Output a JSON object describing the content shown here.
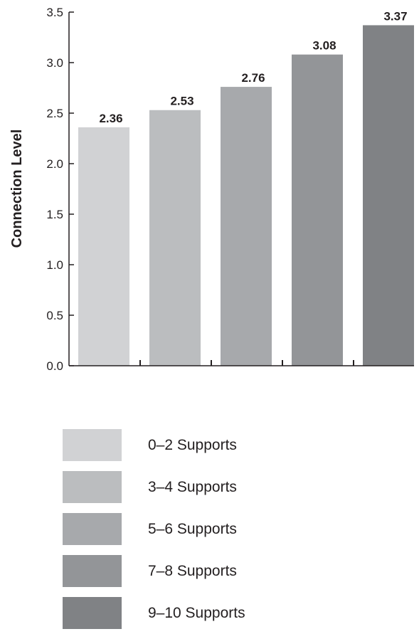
{
  "chart_data": {
    "type": "bar",
    "categories": [
      "0–2 Supports",
      "3–4 Supports",
      "5–6 Supports",
      "7–8 Supports",
      "9–10 Supports"
    ],
    "values": [
      2.36,
      2.53,
      2.76,
      3.08,
      3.37
    ],
    "value_labels": [
      "2.36",
      "2.53",
      "2.76",
      "3.08",
      "3.37"
    ],
    "colors": [
      "#d1d2d4",
      "#bbbdbf",
      "#a7a9ac",
      "#939598",
      "#808285"
    ],
    "title": "",
    "xlabel": "",
    "ylabel": "Connection Level",
    "ylim": [
      0,
      3.5
    ],
    "yticks": [
      "0.0",
      "0.5",
      "1.0",
      "1.5",
      "2.0",
      "2.5",
      "3.0",
      "3.5"
    ],
    "grid": false,
    "legend": "bottom"
  }
}
